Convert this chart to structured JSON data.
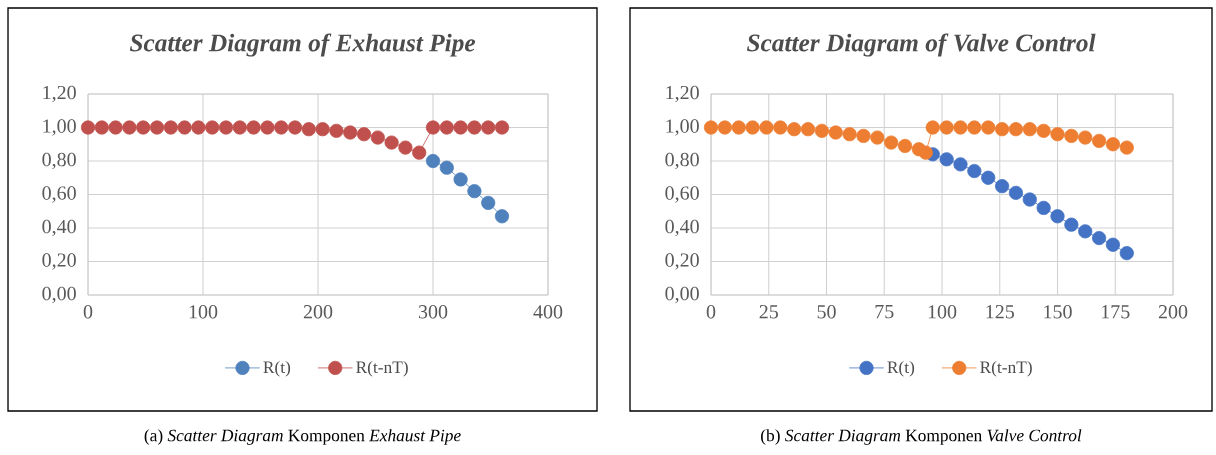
{
  "chart_data": [
    {
      "type": "line",
      "title": "Scatter Diagram of Exhaust Pipe",
      "xlim": [
        0,
        400
      ],
      "ylim": [
        0,
        1.2
      ],
      "xticks": [
        0,
        100,
        200,
        300,
        400
      ],
      "yticks": [
        {
          "value": 0,
          "label": "0,00"
        },
        {
          "value": 0.2,
          "label": "0,20"
        },
        {
          "value": 0.4,
          "label": "0,40"
        },
        {
          "value": 0.6,
          "label": "0,60"
        },
        {
          "value": 0.8,
          "label": "0,80"
        },
        {
          "value": 1.0,
          "label": "1,00"
        },
        {
          "value": 1.2,
          "label": "1,20"
        }
      ],
      "grid": true,
      "legend": "bottom",
      "marker": "circle",
      "line_style": "solid",
      "series": [
        {
          "name": "R(t)",
          "color": "#4f81bd",
          "x": [
            300,
            312,
            324,
            336,
            348,
            360
          ],
          "values": [
            0.8,
            0.76,
            0.69,
            0.62,
            0.55,
            0.47
          ]
        },
        {
          "name": "R(t-nT)",
          "color": "#c0504d",
          "x": [
            0,
            12,
            24,
            36,
            48,
            60,
            72,
            84,
            96,
            108,
            120,
            132,
            144,
            156,
            168,
            180,
            192,
            204,
            216,
            228,
            240,
            252,
            264,
            276,
            288,
            300,
            312,
            324,
            336,
            348,
            360
          ],
          "values": [
            1.0,
            1.0,
            1.0,
            1.0,
            1.0,
            1.0,
            1.0,
            1.0,
            1.0,
            1.0,
            1.0,
            1.0,
            1.0,
            1.0,
            1.0,
            1.0,
            0.99,
            0.99,
            0.98,
            0.97,
            0.96,
            0.94,
            0.91,
            0.88,
            0.85,
            1.0,
            1.0,
            1.0,
            1.0,
            1.0,
            1.0
          ]
        }
      ],
      "annotations": [
        "(a) *Scatter Diagram* Komponen *Exhaust Pipe*"
      ]
    },
    {
      "type": "line",
      "title": "Scatter Diagram of Valve Control",
      "xlim": [
        0,
        200
      ],
      "ylim": [
        0,
        1.2
      ],
      "xticks": [
        0,
        25,
        50,
        75,
        100,
        125,
        150,
        175,
        200
      ],
      "yticks": [
        {
          "value": 0,
          "label": "0,00"
        },
        {
          "value": 0.2,
          "label": "0,20"
        },
        {
          "value": 0.4,
          "label": "0,40"
        },
        {
          "value": 0.6,
          "label": "0,60"
        },
        {
          "value": 0.8,
          "label": "0,80"
        },
        {
          "value": 1.0,
          "label": "1,00"
        },
        {
          "value": 1.2,
          "label": "1,20"
        }
      ],
      "grid": true,
      "legend": "bottom",
      "marker": "circle",
      "line_style": "solid",
      "series": [
        {
          "name": "R(t)",
          "color": "#4472c4",
          "x": [
            96,
            102,
            108,
            114,
            120,
            126,
            132,
            138,
            144,
            150,
            156,
            162,
            168,
            174,
            180
          ],
          "values": [
            0.84,
            0.81,
            0.78,
            0.74,
            0.7,
            0.65,
            0.61,
            0.57,
            0.52,
            0.47,
            0.42,
            0.38,
            0.34,
            0.3,
            0.25
          ]
        },
        {
          "name": "R(t-nT)",
          "color": "#ed7d31",
          "x": [
            0,
            6,
            12,
            18,
            24,
            30,
            36,
            42,
            48,
            54,
            60,
            66,
            72,
            78,
            84,
            90,
            93,
            96,
            102,
            108,
            114,
            120,
            126,
            132,
            138,
            144,
            150,
            156,
            162,
            168,
            174,
            180
          ],
          "values": [
            1.0,
            1.0,
            1.0,
            1.0,
            1.0,
            1.0,
            0.99,
            0.99,
            0.98,
            0.97,
            0.96,
            0.95,
            0.94,
            0.91,
            0.89,
            0.87,
            0.85,
            1.0,
            1.0,
            1.0,
            1.0,
            1.0,
            0.99,
            0.99,
            0.99,
            0.98,
            0.96,
            0.95,
            0.94,
            0.92,
            0.9,
            0.88
          ]
        }
      ],
      "annotations": [
        "(b) *Scatter Diagram* Komponen *Valve Control*"
      ]
    }
  ]
}
